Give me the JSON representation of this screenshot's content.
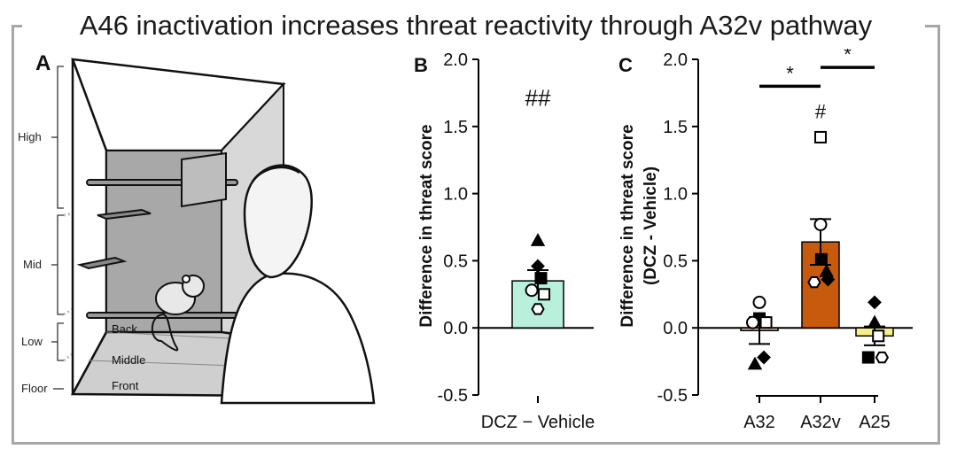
{
  "title": "A46 inactivation increases threat reactivity through A32v pathway",
  "panel_a": {
    "label": "A",
    "height_labels": [
      "High",
      "Mid",
      "Low",
      "Floor"
    ],
    "depth_labels": [
      "Back",
      "Middle",
      "Front"
    ]
  },
  "colors": {
    "frame": "#a6a6a6",
    "bar_b": "#b8f0dc",
    "bar_a32": "#e3b7a2",
    "bar_a32v": "#c85a0e",
    "bar_a25": "#f6f08a"
  },
  "chart_data": [
    {
      "type": "bar",
      "panel_label": "B",
      "categories": [
        "DCZ − Vehicle"
      ],
      "values": [
        0.35
      ],
      "error": [
        0.08
      ],
      "ylabel": "Difference in threat score",
      "ylim": [
        -0.5,
        2.0
      ],
      "yticks": [
        -0.5,
        0.0,
        0.5,
        1.0,
        1.5,
        2.0
      ],
      "tick_labels": [
        "-0.5",
        "0.0",
        "0.5",
        "1.0",
        "1.5",
        "2.0"
      ],
      "annotation": "##",
      "annotation_y": 1.72,
      "points": [
        {
          "cat": 0,
          "shape": "triangle",
          "filled": true,
          "dx": 0.0,
          "y": 0.65
        },
        {
          "cat": 0,
          "shape": "diamond",
          "filled": true,
          "dx": 0.0,
          "y": 0.46
        },
        {
          "cat": 0,
          "shape": "square",
          "filled": true,
          "dx": 0.06,
          "y": 0.37
        },
        {
          "cat": 0,
          "shape": "circle",
          "filled": false,
          "dx": -0.12,
          "y": 0.28
        },
        {
          "cat": 0,
          "shape": "square",
          "filled": false,
          "dx": 0.12,
          "y": 0.25
        },
        {
          "cat": 0,
          "shape": "hexagon",
          "filled": false,
          "dx": 0.0,
          "y": 0.14
        }
      ]
    },
    {
      "type": "bar",
      "panel_label": "C",
      "categories": [
        "A32",
        "A32v",
        "A25"
      ],
      "values": [
        -0.02,
        0.64,
        -0.06
      ],
      "error": [
        0.1,
        0.17,
        0.07
      ],
      "ylabel": "Difference in threat score",
      "ylabel2": "(DCZ - Vehicle)",
      "ylim": [
        -0.5,
        2.0
      ],
      "yticks": [
        -0.5,
        0.0,
        0.5,
        1.0,
        1.5,
        2.0
      ],
      "tick_labels": [
        "-0.5",
        "0.0",
        "0.5",
        "1.0",
        "1.5",
        "2.0"
      ],
      "annotations": [
        {
          "text": "#",
          "cat": 1,
          "y": 1.6
        }
      ],
      "significance": [
        {
          "from": 0,
          "to": 1,
          "y": 1.8,
          "text": "*"
        },
        {
          "from": 1,
          "to": 2,
          "y": 1.94,
          "text": "*"
        }
      ],
      "points": [
        {
          "cat": 0,
          "shape": "circle",
          "filled": false,
          "dx": 0.0,
          "y": 0.19
        },
        {
          "cat": 0,
          "shape": "square",
          "filled": true,
          "dx": 0.0,
          "y": 0.07
        },
        {
          "cat": 0,
          "shape": "circle",
          "filled": false,
          "dx": -0.18,
          "y": 0.04
        },
        {
          "cat": 0,
          "shape": "square",
          "filled": false,
          "dx": 0.18,
          "y": 0.04
        },
        {
          "cat": 0,
          "shape": "diamond",
          "filled": true,
          "dx": 0.12,
          "y": -0.22
        },
        {
          "cat": 0,
          "shape": "triangle",
          "filled": true,
          "dx": -0.12,
          "y": -0.27
        },
        {
          "cat": 1,
          "shape": "square",
          "filled": false,
          "dx": 0.0,
          "y": 1.42
        },
        {
          "cat": 1,
          "shape": "circle",
          "filled": false,
          "dx": 0.0,
          "y": 0.77
        },
        {
          "cat": 1,
          "shape": "square",
          "filled": true,
          "dx": 0.02,
          "y": 0.51
        },
        {
          "cat": 1,
          "shape": "triangle",
          "filled": true,
          "dx": 0.16,
          "y": 0.42
        },
        {
          "cat": 1,
          "shape": "hexagon",
          "filled": false,
          "dx": -0.17,
          "y": 0.34
        },
        {
          "cat": 1,
          "shape": "diamond",
          "filled": true,
          "dx": 0.2,
          "y": 0.36
        },
        {
          "cat": 2,
          "shape": "diamond",
          "filled": true,
          "dx": 0.0,
          "y": 0.19
        },
        {
          "cat": 2,
          "shape": "triangle",
          "filled": true,
          "dx": 0.0,
          "y": 0.04
        },
        {
          "cat": 2,
          "shape": "square",
          "filled": false,
          "dx": 0.1,
          "y": -0.06
        },
        {
          "cat": 2,
          "shape": "square",
          "filled": true,
          "dx": -0.17,
          "y": -0.22
        },
        {
          "cat": 2,
          "shape": "hexagon",
          "filled": false,
          "dx": 0.2,
          "y": -0.22
        }
      ]
    }
  ]
}
